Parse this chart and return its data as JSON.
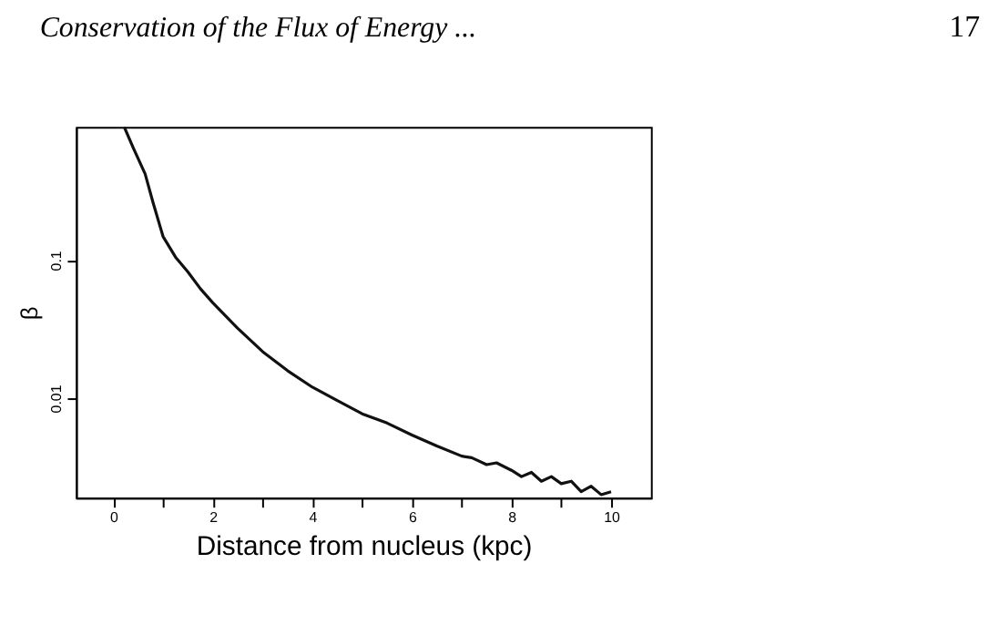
{
  "chart_data": {
    "type": "line",
    "title": "Conservation of the Flux of Energy ...",
    "annotations": [
      "17"
    ],
    "xlabel": "Distance from nucleus (kpc)",
    "ylabel": "β",
    "log": true,
    "grid": false,
    "marker": "none",
    "line_style": "solid",
    "xlim": [
      -0.75,
      10.8
    ],
    "ylim": [
      0.0019,
      0.92
    ],
    "xticks": [
      0,
      {
        "value": 1,
        "label": null
      },
      2,
      {
        "value": 3,
        "label": null
      },
      4,
      {
        "value": 5,
        "label": null
      },
      6,
      {
        "value": 7,
        "label": null
      },
      8,
      {
        "value": 9,
        "label": null
      },
      10
    ],
    "yticks": [
      {
        "value": 0.01,
        "label": "0.01"
      },
      {
        "value": 0.1,
        "label": "0.1"
      }
    ],
    "series": [
      {
        "color": "#111111",
        "x": [
          0.22,
          0.4,
          0.64,
          0.8,
          1.0,
          1.25,
          1.5,
          1.75,
          2.0,
          2.5,
          3.0,
          3.5,
          4.0,
          4.5,
          5.0,
          5.5,
          6.0,
          6.5,
          7.0,
          7.2,
          7.5,
          7.7,
          8.0,
          8.2,
          8.4,
          8.6,
          8.8,
          9.0,
          9.2,
          9.4,
          9.6,
          9.8,
          10.0
        ],
        "values": [
          0.92,
          0.65,
          0.42,
          0.26,
          0.148,
          0.105,
          0.082,
          0.062,
          0.049,
          0.032,
          0.0217,
          0.0158,
          0.012,
          0.0096,
          0.0077,
          0.0066,
          0.0054,
          0.0045,
          0.0038,
          0.0037,
          0.0033,
          0.0034,
          0.003,
          0.0027,
          0.0029,
          0.0025,
          0.0027,
          0.0024,
          0.0025,
          0.0021,
          0.0023,
          0.002,
          0.0021
        ]
      }
    ]
  }
}
